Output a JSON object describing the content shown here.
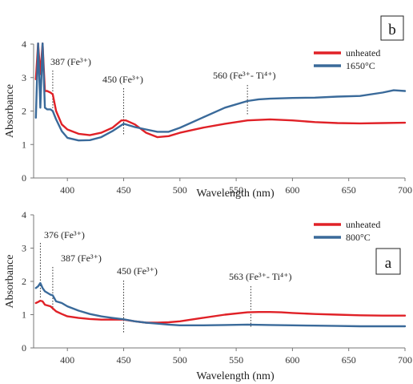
{
  "chart_data": [
    {
      "panel": "b",
      "type": "line",
      "xlabel": "Wavelength (nm)",
      "ylabel": "Absorbance",
      "xlim": [
        370,
        700
      ],
      "ylim": [
        0,
        4
      ],
      "xticks": [
        "400",
        "450",
        "500",
        "550",
        "600",
        "650",
        "700"
      ],
      "yticks": [
        "0",
        "1",
        "2",
        "3",
        "4"
      ],
      "grid": false,
      "legend": "top-right",
      "series": [
        {
          "name": "unheated",
          "color": "#e02127",
          "x": [
            372,
            374,
            376,
            378,
            380,
            382,
            385,
            387,
            390,
            395,
            400,
            410,
            420,
            430,
            440,
            448,
            452,
            460,
            470,
            480,
            490,
            500,
            520,
            540,
            560,
            580,
            600,
            620,
            640,
            660,
            680,
            700
          ],
          "y": [
            2.95,
            4.05,
            3.1,
            4.05,
            2.6,
            2.6,
            2.55,
            2.5,
            2.0,
            1.6,
            1.45,
            1.32,
            1.28,
            1.35,
            1.5,
            1.72,
            1.72,
            1.6,
            1.35,
            1.22,
            1.25,
            1.35,
            1.5,
            1.62,
            1.72,
            1.75,
            1.72,
            1.67,
            1.64,
            1.63,
            1.64,
            1.65
          ]
        },
        {
          "name": "1650°C",
          "color": "#3a6a9a",
          "x": [
            372,
            374,
            376,
            378,
            380,
            382,
            385,
            387,
            390,
            395,
            400,
            410,
            420,
            430,
            440,
            450,
            460,
            470,
            480,
            490,
            500,
            520,
            540,
            560,
            570,
            580,
            600,
            620,
            640,
            660,
            680,
            690,
            700
          ],
          "y": [
            1.8,
            4.05,
            2.1,
            4.05,
            2.1,
            2.05,
            2.05,
            2.0,
            1.75,
            1.4,
            1.2,
            1.12,
            1.13,
            1.22,
            1.4,
            1.62,
            1.52,
            1.45,
            1.38,
            1.38,
            1.5,
            1.8,
            2.1,
            2.3,
            2.35,
            2.37,
            2.39,
            2.4,
            2.43,
            2.45,
            2.55,
            2.62,
            2.6
          ]
        }
      ],
      "annotations": [
        {
          "label": "387 (Fe³⁺)",
          "x": 387
        },
        {
          "label": "450 (Fe³⁺)",
          "x": 450
        },
        {
          "label": "560 (Fe³⁺- Ti⁴⁺)",
          "x": 560
        }
      ]
    },
    {
      "panel": "a",
      "type": "line",
      "xlabel": "Wavelength (nm)",
      "ylabel": "Absorbance",
      "xlim": [
        370,
        700
      ],
      "ylim": [
        0,
        4
      ],
      "xticks": [
        "400",
        "450",
        "500",
        "550",
        "600",
        "650",
        "700"
      ],
      "yticks": [
        "0",
        "1",
        "2",
        "3",
        "4"
      ],
      "grid": false,
      "legend": "top-right",
      "series": [
        {
          "name": "unheated",
          "color": "#e02127",
          "x": [
            372,
            374,
            376,
            378,
            380,
            385,
            390,
            395,
            400,
            410,
            420,
            430,
            440,
            450,
            460,
            470,
            480,
            490,
            500,
            520,
            540,
            560,
            570,
            580,
            590,
            600,
            620,
            640,
            660,
            680,
            700
          ],
          "y": [
            1.35,
            1.38,
            1.42,
            1.4,
            1.3,
            1.25,
            1.1,
            1.02,
            0.95,
            0.9,
            0.87,
            0.85,
            0.85,
            0.85,
            0.8,
            0.76,
            0.76,
            0.77,
            0.8,
            0.9,
            1.0,
            1.07,
            1.08,
            1.08,
            1.07,
            1.05,
            1.02,
            1.0,
            0.98,
            0.97,
            0.97
          ]
        },
        {
          "name": "800°C",
          "color": "#3a6a9a",
          "x": [
            372,
            374,
            376,
            378,
            380,
            385,
            387,
            390,
            395,
            400,
            410,
            420,
            430,
            440,
            450,
            460,
            470,
            480,
            490,
            500,
            520,
            540,
            560,
            580,
            600,
            620,
            640,
            660,
            680,
            700
          ],
          "y": [
            1.8,
            1.85,
            1.95,
            1.8,
            1.7,
            1.6,
            1.58,
            1.4,
            1.35,
            1.25,
            1.12,
            1.02,
            0.95,
            0.9,
            0.86,
            0.8,
            0.76,
            0.73,
            0.7,
            0.68,
            0.68,
            0.69,
            0.7,
            0.69,
            0.68,
            0.67,
            0.66,
            0.65,
            0.65,
            0.65
          ]
        }
      ],
      "annotations": [
        {
          "label": "376 (Fe³⁺)",
          "x": 376
        },
        {
          "label": "387 (Fe³⁺)",
          "x": 387
        },
        {
          "label": "450 (Fe³⁺)",
          "x": 450
        },
        {
          "label": "563 (Fe³⁺- Ti⁴⁺)",
          "x": 563
        }
      ]
    }
  ]
}
